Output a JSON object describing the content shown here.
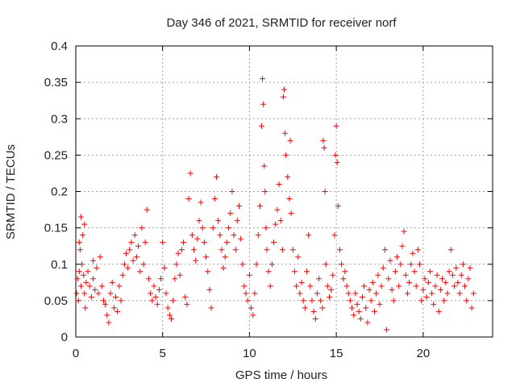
{
  "chart_data": {
    "type": "scatter",
    "title": "Day 346 of 2021, SRMTID for receiver norf",
    "xlabel": "GPS time / hours",
    "ylabel": "SRMTID / TECUs",
    "xlim": [
      0,
      24
    ],
    "ylim": [
      0,
      0.4
    ],
    "xticks": [
      0,
      5,
      10,
      15,
      20
    ],
    "xtick_labels": [
      "0",
      "5",
      "10",
      "15",
      "20"
    ],
    "yticks": [
      0,
      0.05,
      0.1,
      0.15,
      0.2,
      0.25,
      0.3,
      0.35,
      0.4
    ],
    "ytick_labels": [
      "0",
      "0.05",
      "0.1",
      "0.15",
      "0.2",
      "0.25",
      "0.3",
      "0.35",
      "0.4"
    ],
    "grid": true,
    "marker": "+",
    "marker_color": "#ff0000",
    "series": [
      {
        "name": "SRMTID",
        "points": [
          [
            0.05,
            0.06
          ],
          [
            0.1,
            0.08
          ],
          [
            0.15,
            0.05
          ],
          [
            0.2,
            0.09
          ],
          [
            0.25,
            0.12
          ],
          [
            0.3,
            0.07
          ],
          [
            0.35,
            0.1
          ],
          [
            0.4,
            0.14
          ],
          [
            0.45,
            0.085
          ],
          [
            0.5,
            0.06
          ],
          [
            0.55,
            0.04
          ],
          [
            0.6,
            0.075
          ],
          [
            0.7,
            0.09
          ],
          [
            0.8,
            0.07
          ],
          [
            0.9,
            0.055
          ],
          [
            1.0,
            0.08
          ],
          [
            1.1,
            0.065
          ],
          [
            1.2,
            0.095
          ],
          [
            1.3,
            0.06
          ],
          [
            1.4,
            0.11
          ],
          [
            1.5,
            0.07
          ],
          [
            1.6,
            0.05
          ],
          [
            1.7,
            0.045
          ],
          [
            1.8,
            0.03
          ],
          [
            1.9,
            0.02
          ],
          [
            2.0,
            0.06
          ],
          [
            2.1,
            0.075
          ],
          [
            2.2,
            0.04
          ],
          [
            2.3,
            0.055
          ],
          [
            2.4,
            0.035
          ],
          [
            2.5,
            0.07
          ],
          [
            2.6,
            0.05
          ],
          [
            0.3,
            0.165
          ],
          [
            0.5,
            0.155
          ],
          [
            0.2,
            0.13
          ],
          [
            1.0,
            0.105
          ],
          [
            2.7,
            0.085
          ],
          [
            2.8,
            0.1
          ],
          [
            2.9,
            0.115
          ],
          [
            3.0,
            0.095
          ],
          [
            3.1,
            0.12
          ],
          [
            3.2,
            0.13
          ],
          [
            3.3,
            0.105
          ],
          [
            3.4,
            0.14
          ],
          [
            3.5,
            0.11
          ],
          [
            3.6,
            0.125
          ],
          [
            3.7,
            0.09
          ],
          [
            3.8,
            0.15
          ],
          [
            3.9,
            0.1
          ],
          [
            4.0,
            0.13
          ],
          [
            4.1,
            0.175
          ],
          [
            4.2,
            0.08
          ],
          [
            4.3,
            0.06
          ],
          [
            4.4,
            0.05
          ],
          [
            4.5,
            0.07
          ],
          [
            4.6,
            0.055
          ],
          [
            4.7,
            0.045
          ],
          [
            4.8,
            0.065
          ],
          [
            4.9,
            0.08
          ],
          [
            5.0,
            0.13
          ],
          [
            5.1,
            0.095
          ],
          [
            5.2,
            0.06
          ],
          [
            5.3,
            0.04
          ],
          [
            5.4,
            0.03
          ],
          [
            5.5,
            0.025
          ],
          [
            5.6,
            0.05
          ],
          [
            5.7,
            0.08
          ],
          [
            5.8,
            0.1
          ],
          [
            5.9,
            0.115
          ],
          [
            6.0,
            0.085
          ],
          [
            6.1,
            0.12
          ],
          [
            6.2,
            0.13
          ],
          [
            6.3,
            0.055
          ],
          [
            6.4,
            0.045
          ],
          [
            6.5,
            0.19
          ],
          [
            6.6,
            0.225
          ],
          [
            6.7,
            0.14
          ],
          [
            6.8,
            0.12
          ],
          [
            6.9,
            0.105
          ],
          [
            7.0,
            0.135
          ],
          [
            7.1,
            0.16
          ],
          [
            7.2,
            0.185
          ],
          [
            7.3,
            0.15
          ],
          [
            7.4,
            0.13
          ],
          [
            7.5,
            0.11
          ],
          [
            7.6,
            0.09
          ],
          [
            7.7,
            0.065
          ],
          [
            7.8,
            0.04
          ],
          [
            7.9,
            0.15
          ],
          [
            8.0,
            0.19
          ],
          [
            8.1,
            0.22
          ],
          [
            8.2,
            0.16
          ],
          [
            8.3,
            0.14
          ],
          [
            8.4,
            0.12
          ],
          [
            8.5,
            0.095
          ],
          [
            8.6,
            0.11
          ],
          [
            8.7,
            0.13
          ],
          [
            8.8,
            0.15
          ],
          [
            8.9,
            0.17
          ],
          [
            9.0,
            0.2
          ],
          [
            9.1,
            0.14
          ],
          [
            9.2,
            0.12
          ],
          [
            9.3,
            0.16
          ],
          [
            9.4,
            0.18
          ],
          [
            9.5,
            0.135
          ],
          [
            9.6,
            0.1
          ],
          [
            9.7,
            0.07
          ],
          [
            9.8,
            0.06
          ],
          [
            9.9,
            0.05
          ],
          [
            10.0,
            0.085
          ],
          [
            10.1,
            0.04
          ],
          [
            10.2,
            0.03
          ],
          [
            10.3,
            0.06
          ],
          [
            10.4,
            0.1
          ],
          [
            10.5,
            0.14
          ],
          [
            10.6,
            0.18
          ],
          [
            10.7,
            0.29
          ],
          [
            10.75,
            0.355
          ],
          [
            10.8,
            0.32
          ],
          [
            10.85,
            0.235
          ],
          [
            10.9,
            0.2
          ],
          [
            10.95,
            0.15
          ],
          [
            11.0,
            0.12
          ],
          [
            11.1,
            0.09
          ],
          [
            11.2,
            0.07
          ],
          [
            11.3,
            0.1
          ],
          [
            11.4,
            0.13
          ],
          [
            11.5,
            0.155
          ],
          [
            11.6,
            0.175
          ],
          [
            11.7,
            0.21
          ],
          [
            11.8,
            0.16
          ],
          [
            11.9,
            0.12
          ],
          [
            11.95,
            0.33
          ],
          [
            12.0,
            0.34
          ],
          [
            12.05,
            0.28
          ],
          [
            12.1,
            0.25
          ],
          [
            12.2,
            0.22
          ],
          [
            12.3,
            0.19
          ],
          [
            12.35,
            0.27
          ],
          [
            12.4,
            0.17
          ],
          [
            12.5,
            0.12
          ],
          [
            12.6,
            0.09
          ],
          [
            12.7,
            0.07
          ],
          [
            12.8,
            0.11
          ],
          [
            12.9,
            0.06
          ],
          [
            13.0,
            0.075
          ],
          [
            13.1,
            0.05
          ],
          [
            13.2,
            0.04
          ],
          [
            13.3,
            0.09
          ],
          [
            13.4,
            0.14
          ],
          [
            13.5,
            0.07
          ],
          [
            13.6,
            0.05
          ],
          [
            13.7,
            0.035
          ],
          [
            13.8,
            0.025
          ],
          [
            13.9,
            0.06
          ],
          [
            14.0,
            0.08
          ],
          [
            14.1,
            0.05
          ],
          [
            14.2,
            0.04
          ],
          [
            14.25,
            0.27
          ],
          [
            14.3,
            0.26
          ],
          [
            14.35,
            0.2
          ],
          [
            14.4,
            0.1
          ],
          [
            14.5,
            0.07
          ],
          [
            14.6,
            0.055
          ],
          [
            14.7,
            0.065
          ],
          [
            14.8,
            0.085
          ],
          [
            14.9,
            0.14
          ],
          [
            14.95,
            0.25
          ],
          [
            15.0,
            0.29
          ],
          [
            15.05,
            0.24
          ],
          [
            15.1,
            0.18
          ],
          [
            15.2,
            0.12
          ],
          [
            15.3,
            0.1
          ],
          [
            15.4,
            0.08
          ],
          [
            15.5,
            0.09
          ],
          [
            15.6,
            0.07
          ],
          [
            15.7,
            0.06
          ],
          [
            15.8,
            0.05
          ],
          [
            15.9,
            0.04
          ],
          [
            16.0,
            0.03
          ],
          [
            16.1,
            0.06
          ],
          [
            16.2,
            0.045
          ],
          [
            16.3,
            0.035
          ],
          [
            16.4,
            0.025
          ],
          [
            16.5,
            0.055
          ],
          [
            16.6,
            0.07
          ],
          [
            16.7,
            0.04
          ],
          [
            16.8,
            0.02
          ],
          [
            16.9,
            0.065
          ],
          [
            17.0,
            0.05
          ],
          [
            17.1,
            0.075
          ],
          [
            17.2,
            0.035
          ],
          [
            17.3,
            0.06
          ],
          [
            17.4,
            0.085
          ],
          [
            17.5,
            0.045
          ],
          [
            17.6,
            0.07
          ],
          [
            17.7,
            0.095
          ],
          [
            17.8,
            0.12
          ],
          [
            17.9,
            0.01
          ],
          [
            18.0,
            0.08
          ],
          [
            18.1,
            0.105
          ],
          [
            18.2,
            0.065
          ],
          [
            18.3,
            0.05
          ],
          [
            18.4,
            0.09
          ],
          [
            18.5,
            0.11
          ],
          [
            18.6,
            0.07
          ],
          [
            18.7,
            0.1
          ],
          [
            18.8,
            0.125
          ],
          [
            18.9,
            0.145
          ],
          [
            19.0,
            0.085
          ],
          [
            19.1,
            0.06
          ],
          [
            19.2,
            0.075
          ],
          [
            19.3,
            0.1
          ],
          [
            19.4,
            0.115
          ],
          [
            19.5,
            0.09
          ],
          [
            19.6,
            0.07
          ],
          [
            19.7,
            0.12
          ],
          [
            19.8,
            0.1
          ],
          [
            19.9,
            0.05
          ],
          [
            20.0,
            0.065
          ],
          [
            20.1,
            0.08
          ],
          [
            20.2,
            0.055
          ],
          [
            20.3,
            0.075
          ],
          [
            20.4,
            0.09
          ],
          [
            20.5,
            0.06
          ],
          [
            20.6,
            0.045
          ],
          [
            20.7,
            0.07
          ],
          [
            20.8,
            0.085
          ],
          [
            20.9,
            0.035
          ],
          [
            21.0,
            0.065
          ],
          [
            21.1,
            0.08
          ],
          [
            21.2,
            0.05
          ],
          [
            21.3,
            0.075
          ],
          [
            21.4,
            0.06
          ],
          [
            21.5,
            0.09
          ],
          [
            21.6,
            0.12
          ],
          [
            21.7,
            0.085
          ],
          [
            21.8,
            0.07
          ],
          [
            21.9,
            0.095
          ],
          [
            22.0,
            0.075
          ],
          [
            22.1,
            0.06
          ],
          [
            22.2,
            0.085
          ],
          [
            22.3,
            0.1
          ],
          [
            22.4,
            0.07
          ],
          [
            22.5,
            0.05
          ],
          [
            22.6,
            0.08
          ],
          [
            22.7,
            0.095
          ],
          [
            22.8,
            0.04
          ],
          [
            22.9,
            0.06
          ]
        ]
      }
    ]
  }
}
